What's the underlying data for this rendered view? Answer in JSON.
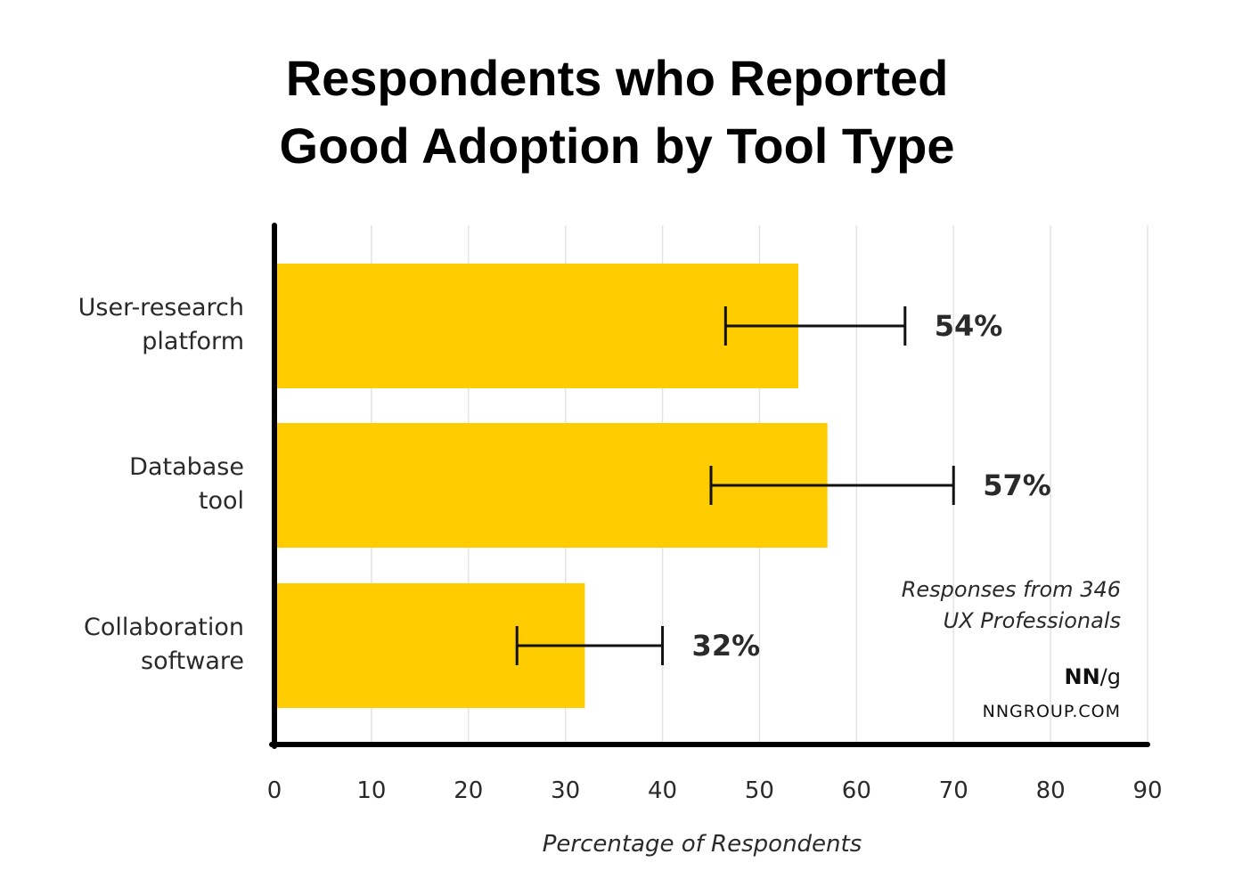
{
  "chart_data": {
    "type": "bar",
    "orientation": "horizontal",
    "title_lines": [
      "Respondents who Reported",
      "Good Adoption by Tool Type"
    ],
    "categories": [
      [
        "User-research",
        "platform"
      ],
      [
        "Database",
        "tool"
      ],
      [
        "Collaboration",
        "software"
      ]
    ],
    "values": [
      54,
      57,
      32
    ],
    "value_labels": [
      "54%",
      "57%",
      "32%"
    ],
    "error_bars": [
      [
        46.5,
        65
      ],
      [
        45,
        70
      ],
      [
        25,
        40
      ]
    ],
    "xlabel": "Percentage of Respondents",
    "xlim": [
      0,
      90
    ],
    "xticks": [
      0,
      10,
      20,
      30,
      40,
      50,
      60,
      70,
      80,
      90
    ],
    "grid": "vertical",
    "bar_color": "#FFCC00",
    "note_lines": [
      "Responses from 346",
      "UX Professionals"
    ],
    "brand": {
      "nn": "NN",
      "slash": "/",
      "g": "g"
    },
    "site": "NNGROUP.COM"
  }
}
